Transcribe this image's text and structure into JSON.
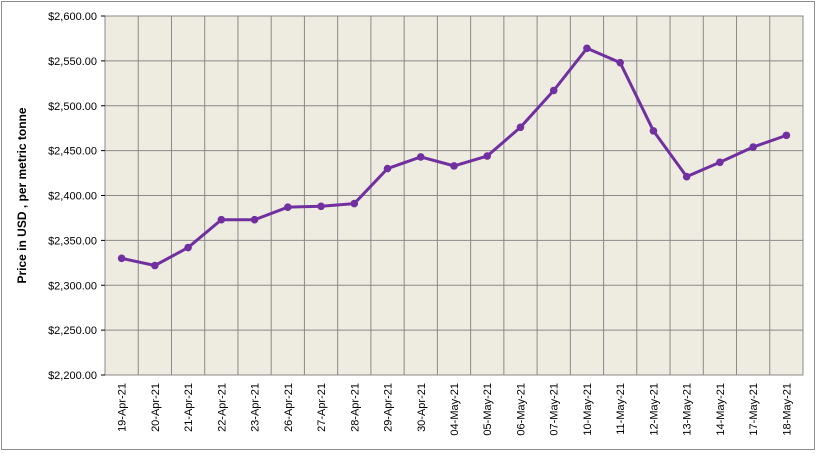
{
  "chart_data": {
    "type": "line",
    "title": "",
    "xlabel": "",
    "ylabel": "Price in USD , per metric tonne",
    "ylim": [
      2200,
      2600
    ],
    "y_step": 50,
    "y_tick_labels": [
      "$2,200.00",
      "$2,250.00",
      "$2,300.00",
      "$2,350.00",
      "$2,400.00",
      "$2,450.00",
      "$2,500.00",
      "$2,550.00",
      "$2,600.00"
    ],
    "grid": true,
    "legend": "none",
    "colors": {
      "line": "#7030a0",
      "plot_bg": "#eeebe0",
      "grid": "#8a8a8a"
    },
    "categories": [
      "19-Apr-21",
      "20-Apr-21",
      "21-Apr-21",
      "22-Apr-21",
      "23-Apr-21",
      "26-Apr-21",
      "27-Apr-21",
      "28-Apr-21",
      "29-Apr-21",
      "30-Apr-21",
      "04-May-21",
      "05-May-21",
      "06-May-21",
      "07-May-21",
      "10-May-21",
      "11-May-21",
      "12-May-21",
      "13-May-21",
      "14-May-21",
      "17-May-21",
      "18-May-21"
    ],
    "series": [
      {
        "values": [
          2330,
          2322,
          2342,
          2373,
          2373,
          2387,
          2388,
          2391,
          2430,
          2443,
          2433,
          2444,
          2476,
          2517,
          2564,
          2548,
          2472,
          2421,
          2437,
          2454,
          2467
        ]
      }
    ]
  }
}
